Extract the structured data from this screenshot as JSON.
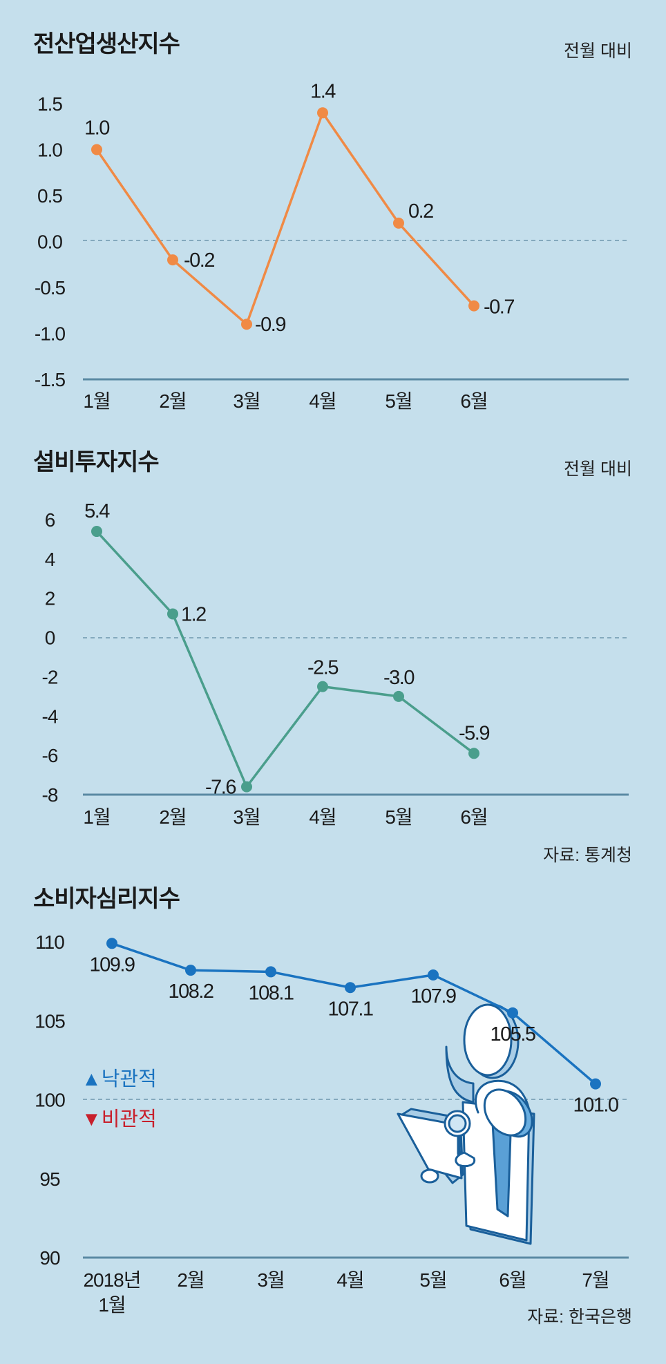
{
  "chart_data": [
    {
      "type": "line",
      "title": "전산업생산지수",
      "note": "전월 대비",
      "categories": [
        "1월",
        "2월",
        "3월",
        "4월",
        "5월",
        "6월"
      ],
      "series": [
        {
          "values": [
            1.0,
            -0.2,
            -0.9,
            1.4,
            0.2,
            -0.7
          ],
          "labels": [
            "1.0",
            "-0.2",
            "-0.9",
            "1.4",
            "0.2",
            "-0.7"
          ]
        }
      ],
      "ylim": [
        -1.5,
        1.5
      ],
      "yticks": [
        "1.5",
        "1.0",
        "0.5",
        "0.0",
        "-0.5",
        "-1.0",
        "-1.5"
      ],
      "reference_line": 0,
      "color": "#f08a45"
    },
    {
      "type": "line",
      "title": "설비투자지수",
      "note": "전월 대비",
      "categories": [
        "1월",
        "2월",
        "3월",
        "4월",
        "5월",
        "6월"
      ],
      "series": [
        {
          "values": [
            5.4,
            1.2,
            -7.6,
            -2.5,
            -3.0,
            -5.9
          ],
          "labels": [
            "5.4",
            "1.2",
            "-7.6",
            "-2.5",
            "-3.0",
            "-5.9"
          ]
        }
      ],
      "ylim": [
        -8,
        6
      ],
      "yticks": [
        "6",
        "4",
        "2",
        "0",
        "-2",
        "-4",
        "-6",
        "-8"
      ],
      "reference_line": 0,
      "source": "자료: 통계청",
      "color": "#4a9e8c"
    },
    {
      "type": "line",
      "title": "소비자심리지수",
      "categories": [
        "2018년\n1월",
        "2월",
        "3월",
        "4월",
        "5월",
        "6월",
        "7월"
      ],
      "series": [
        {
          "values": [
            109.9,
            108.2,
            108.1,
            107.1,
            107.9,
            105.5,
            101.0
          ],
          "labels": [
            "109.9",
            "108.2",
            "108.1",
            "107.1",
            "107.9",
            "105.5",
            "101.0"
          ]
        }
      ],
      "ylim": [
        90,
        110
      ],
      "yticks": [
        "110",
        "105",
        "100",
        "95",
        "90"
      ],
      "reference_line": 100,
      "legend": {
        "up": "▲낙관적",
        "down": "▼비관적"
      },
      "source": "자료: 한국은행",
      "color": "#1a73c0"
    }
  ]
}
